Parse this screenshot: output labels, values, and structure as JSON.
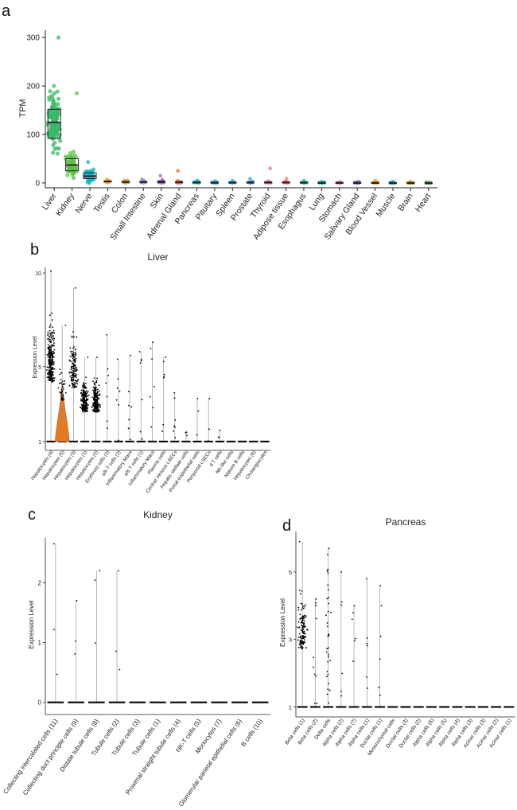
{
  "chart_data": [
    {
      "panel": "a",
      "type": "box-jitter",
      "ylabel": "TPM",
      "ylim": [
        -10,
        315
      ],
      "yticks": [
        0,
        100,
        200,
        300
      ],
      "categories": [
        "Liver",
        "Kidney",
        "Nerve",
        "Testis",
        "Colon",
        "Small Intestine",
        "Skin",
        "Adrenal Gland",
        "Pancreas",
        "Pituitary",
        "Spleen",
        "Prostate",
        "Thyroid",
        "Adipose tissue",
        "Esophagus",
        "Lung",
        "Stomach",
        "Salivary Gland",
        "Blood Vessel",
        "Muscle",
        "Brain",
        "Heart"
      ],
      "colors": [
        "#3cb86a",
        "#5fc24a",
        "#19b3c4",
        "#f5a623",
        "#c8a233",
        "#9a8fc9",
        "#9a66c7",
        "#d96a3a",
        "#1fb3c9",
        "#3aa5d9",
        "#46b0d6",
        "#4a90d9",
        "#e06aa0",
        "#f27070",
        "#37b8a0",
        "#2db8b8",
        "#e884c4",
        "#7a7ad0",
        "#f59a28",
        "#2aa8c8",
        "#d8a030",
        "#6ab060"
      ],
      "medians": [
        125,
        37,
        14,
        3,
        2,
        2,
        2,
        1.5,
        1,
        1,
        1,
        1,
        1,
        1,
        1,
        0.5,
        0.5,
        0.5,
        0.5,
        0.3,
        0.3,
        0.2
      ],
      "q1": [
        92,
        25,
        9,
        2,
        1.2,
        1,
        1,
        1,
        0.5,
        0.5,
        0.5,
        0.5,
        0.5,
        0.5,
        0.5,
        0.3,
        0.3,
        0.3,
        0.3,
        0.2,
        0.2,
        0.1
      ],
      "q3": [
        152,
        50,
        21,
        4,
        3,
        3,
        4,
        2.5,
        2,
        1.5,
        1.5,
        1.8,
        2,
        2,
        1.5,
        1,
        1,
        1,
        1,
        0.6,
        0.6,
        0.4
      ],
      "maxes": [
        300,
        185,
        43,
        6,
        5,
        8,
        15,
        25,
        5,
        4,
        5,
        9,
        30,
        9,
        5,
        3,
        2,
        3,
        5,
        3,
        3,
        2
      ]
    },
    {
      "panel": "b",
      "type": "violin-strip",
      "title": "Liver",
      "ylabel": "Expression Level",
      "ylim": [
        0.7,
        10.3
      ],
      "yticks": [
        1,
        5,
        10
      ],
      "categories": [
        "Hepatocytes (4)",
        "Hepatocytes (5)",
        "Hepatocytes (3)",
        "Hepatocytes (1)",
        "Hepatocytes (2)",
        "Erythroid cells (2)",
        "a/b T cells (2)",
        "Inflammatory Macs",
        "a/b T cells (1)",
        "Inflammatory Macs",
        "Plasma cells",
        "Central Venous LSECs",
        "Hepatic stellate cells",
        "Portal endothelial cells",
        "Periportal LSECs",
        "d T cells",
        "NK-like cells",
        "Mature B cells",
        "Hepatocytes (6)",
        "Cholangiocytes"
      ],
      "maxes": [
        10.1,
        7.2,
        9.2,
        5.5,
        5.5,
        6.7,
        5.4,
        5.6,
        5.8,
        6.3,
        5.5,
        3.6,
        1.5,
        3.3,
        3.3,
        1.6,
        1.0,
        1.0,
        1.0,
        1.0
      ],
      "highlight_index": 1,
      "highlight_color": "#e07b2a"
    },
    {
      "panel": "c",
      "type": "violin-strip",
      "title": "Kidney",
      "ylabel": "Expression Level",
      "ylim": [
        -0.15,
        2.75
      ],
      "yticks": [
        0,
        1,
        2
      ],
      "categories": [
        "Collecting intercalated cells (11)",
        "Collecting duct principle cells (9)",
        "Distale tubule cells (8)",
        "Tubule cells (2)",
        "Tubule cells (3)",
        "Tubule cells (1)",
        "Proximal straight tubule cells (4)",
        "NK-T cells (5)",
        "Monocytes (7)",
        "Glomerular parietal epithelial cells (6)",
        "B cells (10)"
      ],
      "maxes": [
        2.65,
        1.7,
        2.2,
        2.2,
        0,
        0,
        0,
        0,
        0,
        0,
        0
      ]
    },
    {
      "panel": "d",
      "type": "violin-strip",
      "title": "Pancreas",
      "ylabel": "Expression Level",
      "ylim": [
        0.8,
        6.2
      ],
      "yticks": [
        1,
        3,
        5
      ],
      "categories": [
        "Beta cells (1)",
        "Beta cells (2)",
        "Delta cells",
        "Alpha cells (2)",
        "Alpha cells (7)",
        "Alpha cells (1)",
        "Ductal cells (1)",
        "Mesenchymal cells",
        "Ductal cells (3)",
        "Ductal cells (2)",
        "Alpha cells (6)",
        "Alpha cells (5)",
        "Alpha cells (4)",
        "Alpha cells (3)",
        "Acinar cells (3)",
        "Acinar cells (2)",
        "Acinar cells (1)"
      ],
      "maxes": [
        5.9,
        4.2,
        5.7,
        5.0,
        4.0,
        4.8,
        4.6,
        1.0,
        1.0,
        1.0,
        1.0,
        1.0,
        1.0,
        1.0,
        1.0,
        1.0,
        1.0
      ]
    }
  ],
  "panel_letters": [
    "a",
    "b",
    "c",
    "d"
  ]
}
